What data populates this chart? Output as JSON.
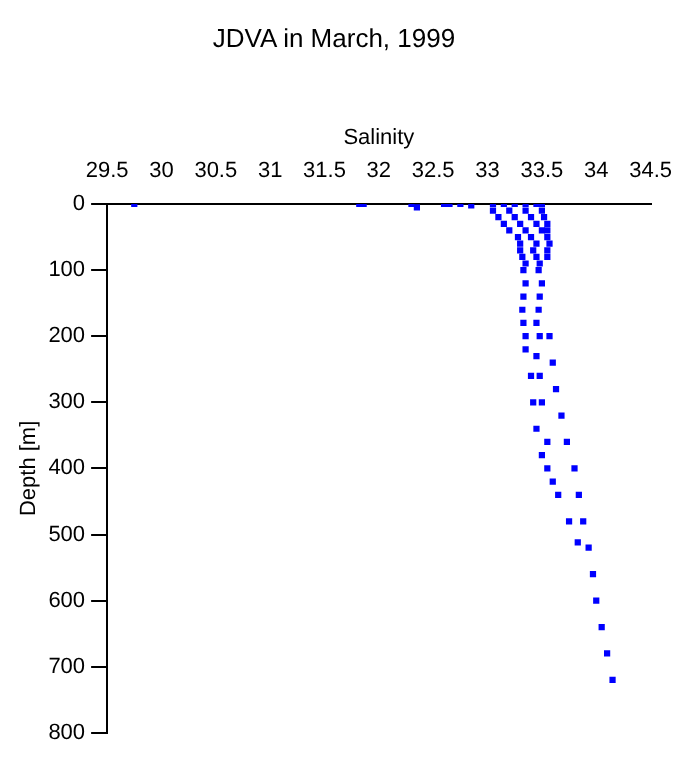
{
  "chart_data": {
    "type": "scatter",
    "title": "JDVA in March, 1999",
    "xlabel": "Salinity",
    "ylabel": "Depth [m]",
    "xlim": [
      29.5,
      34.5
    ],
    "xticks": [
      29.5,
      30,
      30.5,
      31,
      31.5,
      32,
      32.5,
      33,
      33.5,
      34,
      34.5
    ],
    "ylim": [
      800,
      0
    ],
    "yticks": [
      0,
      100,
      200,
      300,
      400,
      500,
      600,
      700,
      800
    ],
    "grid": false,
    "legend": false,
    "marker": "square",
    "series": [
      {
        "color": "#0000ff",
        "x": [
          29.75,
          31.82,
          31.86,
          32.3,
          32.35,
          32.6,
          32.65,
          32.75,
          32.85,
          33.05,
          33.15,
          33.25,
          33.35,
          33.45,
          33.5,
          33.05,
          33.2,
          33.35,
          33.5,
          33.1,
          33.25,
          33.4,
          33.52,
          33.15,
          33.3,
          33.45,
          33.55,
          33.2,
          33.35,
          33.5,
          33.55,
          33.28,
          33.4,
          33.55,
          33.3,
          33.45,
          33.57,
          33.3,
          33.42,
          33.55,
          33.32,
          33.45,
          33.55,
          33.35,
          33.48,
          33.33,
          33.47,
          33.35,
          33.5,
          33.33,
          33.48,
          33.32,
          33.47,
          33.33,
          33.45,
          33.35,
          33.48,
          33.57,
          33.6,
          33.63,
          33.68,
          33.73,
          33.8,
          33.84,
          33.88,
          33.93,
          33.97,
          34.0,
          34.05,
          34.1,
          34.15,
          33.35,
          33.4,
          33.42,
          33.45,
          33.5,
          33.55,
          33.65,
          33.75,
          33.83,
          33.45,
          33.48,
          33.5,
          33.55,
          33.6
        ],
        "values": [
          0,
          0,
          0,
          0,
          5,
          0,
          0,
          0,
          2,
          0,
          0,
          0,
          0,
          0,
          0,
          10,
          10,
          10,
          10,
          20,
          20,
          20,
          20,
          30,
          30,
          30,
          30,
          40,
          40,
          40,
          40,
          50,
          50,
          50,
          60,
          60,
          60,
          70,
          70,
          70,
          80,
          80,
          80,
          90,
          90,
          100,
          100,
          120,
          120,
          140,
          140,
          160,
          160,
          180,
          180,
          200,
          200,
          200,
          240,
          280,
          320,
          360,
          400,
          440,
          480,
          520,
          560,
          600,
          640,
          680,
          720,
          220,
          260,
          300,
          340,
          380,
          400,
          440,
          480,
          512,
          230,
          260,
          300,
          360,
          420
        ]
      }
    ]
  }
}
